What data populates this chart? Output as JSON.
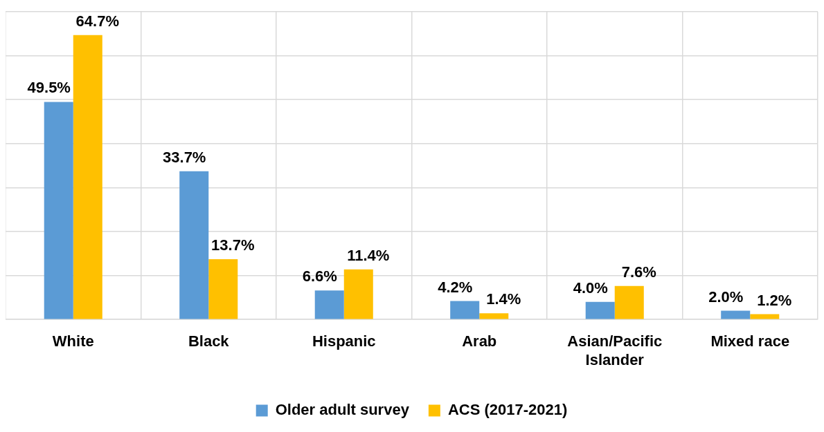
{
  "chart_data": {
    "type": "bar",
    "categories": [
      "White",
      "Black",
      "Hispanic",
      "Arab",
      "Asian/Pacific Islander",
      "Mixed race"
    ],
    "series": [
      {
        "name": "Older adult survey",
        "color": "#5b9bd5",
        "values": [
          49.5,
          33.7,
          6.6,
          4.2,
          4.0,
          2.0
        ],
        "value_labels": [
          "49.5%",
          "33.7%",
          "6.6%",
          "4.2%",
          "4.0%",
          "2.0%"
        ]
      },
      {
        "name": "ACS (2017-2021)",
        "color": "#ffc000",
        "values": [
          64.7,
          13.7,
          11.4,
          1.4,
          7.6,
          1.2
        ],
        "value_labels": [
          "64.7%",
          "13.7%",
          "11.4%",
          "1.4%",
          "7.6%",
          "1.2%"
        ]
      }
    ],
    "ylim": [
      0,
      70
    ],
    "yticks": [
      {
        "value": 0,
        "label": null
      },
      {
        "value": 10,
        "label": null
      },
      {
        "value": 20,
        "label": null
      },
      {
        "value": 30,
        "label": null
      },
      {
        "value": 40,
        "label": null
      },
      {
        "value": 50,
        "label": null
      },
      {
        "value": 60,
        "label": null
      },
      {
        "value": 70,
        "label": null
      }
    ],
    "grid": true,
    "legend": "bottom",
    "tick_labels": "x"
  }
}
